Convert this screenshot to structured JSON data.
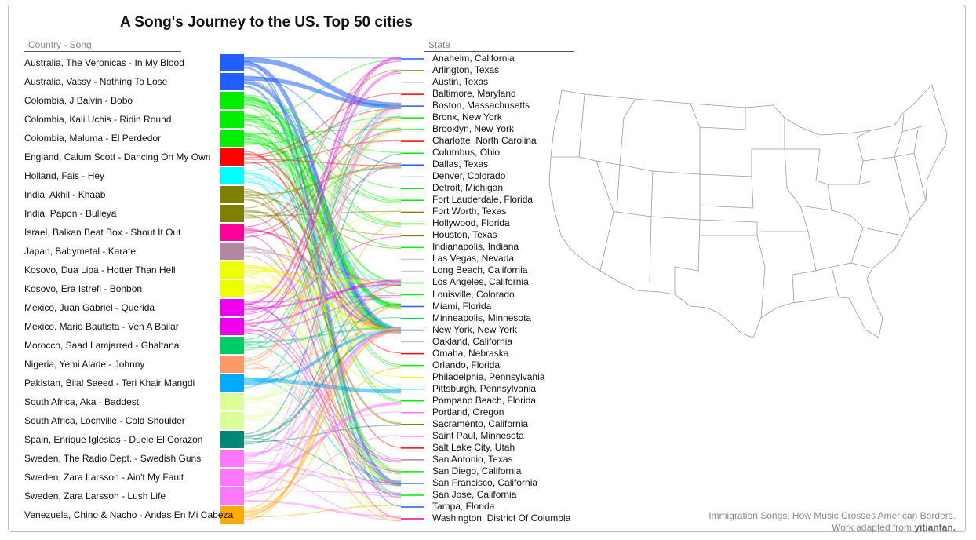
{
  "title": "A Song's Journey to the US. Top 50 cities",
  "left_header": "Country - Song",
  "right_header": "State",
  "credit": {
    "line1": "Immigration Songs: How Music Crosses American Borders.",
    "line2_prefix": "Work adapted from ",
    "line2_author": "yitianfan."
  },
  "songs": [
    {
      "label": "Australia, The Veronicas - In My Blood",
      "color": "#1f5eff"
    },
    {
      "label": "Australia, Vassy - Nothing To Lose",
      "color": "#1f5eff"
    },
    {
      "label": "Colombia, J Balvin - Bobo",
      "color": "#00ee00"
    },
    {
      "label": "Colombia, Kali Uchis - Ridin Round",
      "color": "#00ee00"
    },
    {
      "label": "Colombia, Maluma - El Perdedor",
      "color": "#00ee00"
    },
    {
      "label": "England, Calum Scott - Dancing On My Own",
      "color": "#ff0000"
    },
    {
      "label": "Holland, Fais - Hey",
      "color": "#00ffff"
    },
    {
      "label": "India, Akhil - Khaab",
      "color": "#808000"
    },
    {
      "label": "India, Papon - Bulleya",
      "color": "#808000"
    },
    {
      "label": "Israel, Balkan Beat Box - Shout It Out",
      "color": "#ff0099"
    },
    {
      "label": "Japan, Babymetal - Karate",
      "color": "#b3879f"
    },
    {
      "label": "Kosovo, Dua Lipa - Hotter Than Hell",
      "color": "#eeff00"
    },
    {
      "label": "Kosovo, Era Istrefi - Bonbon",
      "color": "#eeff00"
    },
    {
      "label": "Mexico, Juan Gabriel - Querida",
      "color": "#ee00ee"
    },
    {
      "label": "Mexico, Mario Bautista - Ven A Bailar",
      "color": "#ee00ee"
    },
    {
      "label": "Morocco, Saad Lamjarred - Ghaltana",
      "color": "#00cc66"
    },
    {
      "label": "Nigeria, Yemi Alade - Johnny",
      "color": "#ff9966"
    },
    {
      "label": "Pakistan, Bilal Saeed - Teri Khair Mangdi",
      "color": "#00aaff"
    },
    {
      "label": "South Africa, Aka - Baddest",
      "color": "#ddff99"
    },
    {
      "label": "South Africa, Locnville - Cold Shoulder",
      "color": "#ddff99"
    },
    {
      "label": "Spain, Enrique Iglesias - Duele El Corazon",
      "color": "#008877"
    },
    {
      "label": "Sweden, The Radio Dept. - Swedish Guns",
      "color": "#ff77ff"
    },
    {
      "label": "Sweden, Zara Larsson - Ain't My Fault",
      "color": "#ff77ff"
    },
    {
      "label": "Sweden, Zara Larsson - Lush Life",
      "color": "#ff77ff"
    },
    {
      "label": "Venezuela, Chino & Nacho - Andas En Mi Cabeza",
      "color": "#ffaa00"
    }
  ],
  "cities": [
    "Anaheim, California",
    "Arlington, Texas",
    "Austin, Texas",
    "Baltimore, Maryland",
    "Boston, Massachusetts",
    "Bronx, New York",
    "Brooklyn, New York",
    "Charlotte, North Carolina",
    "Columbus, Ohio",
    "Dallas, Texas",
    "Denver, Colorado",
    "Detroit, Michigan",
    "Fort Lauderdale, Florida",
    "Fort Worth, Texas",
    "Hollywood, Florida",
    "Houston, Texas",
    "Indianapolis, Indiana",
    "Las Vegas, Nevada",
    "Long Beach, California",
    "Los Angeles, California",
    "Louisville, Colorado",
    "Miami, Florida",
    "Minneapolis, Minnesota",
    "New York, New York",
    "Oakland, California",
    "Omaha, Nebraska",
    "Orlando, Florida",
    "Philadelphia, Pennsylvania",
    "Pittsburgh, Pennsylvania",
    "Pompano Beach, Florida",
    "Portland, Oregon",
    "Sacramento, California",
    "Saint Paul, Minnesota",
    "Salt Lake City, Utah",
    "San Antonio, Texas",
    "San Diego, California",
    "San Francisco, California",
    "San Jose, California",
    "Tampa, Florida",
    "Washington, District Of Columbia"
  ],
  "links": [
    [
      0,
      4,
      5
    ],
    [
      0,
      23,
      4
    ],
    [
      0,
      36,
      2
    ],
    [
      0,
      0,
      1
    ],
    [
      0,
      38,
      1
    ],
    [
      1,
      4,
      4
    ],
    [
      1,
      23,
      3
    ],
    [
      1,
      36,
      2
    ],
    [
      1,
      9,
      1
    ],
    [
      1,
      21,
      1
    ],
    [
      2,
      21,
      3
    ],
    [
      2,
      23,
      2
    ],
    [
      2,
      14,
      1
    ],
    [
      2,
      12,
      1
    ],
    [
      2,
      26,
      1
    ],
    [
      2,
      35,
      1
    ],
    [
      2,
      37,
      1
    ],
    [
      2,
      29,
      1
    ],
    [
      2,
      11,
      1
    ],
    [
      2,
      20,
      1
    ],
    [
      3,
      23,
      2
    ],
    [
      3,
      19,
      2
    ],
    [
      3,
      36,
      1
    ],
    [
      3,
      35,
      1
    ],
    [
      3,
      0,
      1
    ],
    [
      3,
      21,
      1
    ],
    [
      3,
      12,
      1
    ],
    [
      3,
      14,
      1
    ],
    [
      3,
      8,
      1
    ],
    [
      4,
      21,
      3
    ],
    [
      4,
      23,
      2
    ],
    [
      4,
      14,
      1
    ],
    [
      4,
      12,
      1
    ],
    [
      4,
      26,
      1
    ],
    [
      4,
      29,
      1
    ],
    [
      4,
      5,
      1
    ],
    [
      4,
      6,
      1
    ],
    [
      4,
      35,
      1
    ],
    [
      4,
      16,
      1
    ],
    [
      5,
      23,
      2
    ],
    [
      5,
      4,
      1
    ],
    [
      5,
      25,
      1
    ],
    [
      5,
      33,
      1
    ],
    [
      5,
      3,
      1
    ],
    [
      5,
      9,
      1
    ],
    [
      5,
      7,
      1
    ],
    [
      6,
      23,
      2
    ],
    [
      6,
      19,
      1
    ],
    [
      6,
      36,
      1
    ],
    [
      6,
      4,
      1
    ],
    [
      6,
      28,
      1
    ],
    [
      6,
      37,
      1
    ],
    [
      6,
      21,
      1
    ],
    [
      7,
      23,
      2
    ],
    [
      7,
      9,
      2
    ],
    [
      7,
      31,
      2
    ],
    [
      7,
      36,
      1
    ],
    [
      7,
      37,
      1
    ],
    [
      7,
      16,
      1
    ],
    [
      8,
      23,
      2
    ],
    [
      8,
      36,
      1
    ],
    [
      8,
      9,
      1
    ],
    [
      8,
      1,
      1
    ],
    [
      8,
      15,
      1
    ],
    [
      8,
      13,
      1
    ],
    [
      9,
      23,
      2
    ],
    [
      9,
      5,
      1
    ],
    [
      9,
      6,
      1
    ],
    [
      9,
      0,
      1
    ],
    [
      9,
      19,
      1
    ],
    [
      9,
      39,
      1
    ],
    [
      10,
      23,
      2
    ],
    [
      10,
      19,
      1
    ],
    [
      10,
      36,
      1
    ],
    [
      10,
      37,
      1
    ],
    [
      10,
      34,
      1
    ],
    [
      11,
      23,
      3
    ],
    [
      11,
      19,
      2
    ],
    [
      11,
      4,
      1
    ],
    [
      11,
      36,
      1
    ],
    [
      11,
      13,
      1
    ],
    [
      11,
      27,
      1
    ],
    [
      11,
      39,
      1
    ],
    [
      12,
      23,
      2
    ],
    [
      12,
      5,
      1
    ],
    [
      12,
      6,
      1
    ],
    [
      12,
      28,
      1
    ],
    [
      12,
      35,
      1
    ],
    [
      12,
      21,
      1
    ],
    [
      13,
      0,
      2
    ],
    [
      13,
      19,
      2
    ],
    [
      13,
      1,
      1
    ],
    [
      13,
      20,
      1
    ],
    [
      13,
      34,
      1
    ],
    [
      13,
      15,
      1
    ],
    [
      13,
      9,
      1
    ],
    [
      13,
      37,
      1
    ],
    [
      14,
      19,
      2
    ],
    [
      14,
      0,
      1
    ],
    [
      14,
      20,
      1
    ],
    [
      14,
      1,
      1
    ],
    [
      14,
      34,
      1
    ],
    [
      14,
      35,
      1
    ],
    [
      14,
      36,
      1
    ],
    [
      15,
      23,
      2
    ],
    [
      15,
      5,
      1
    ],
    [
      15,
      6,
      1
    ],
    [
      15,
      4,
      1
    ],
    [
      15,
      36,
      1
    ],
    [
      15,
      22,
      1
    ],
    [
      16,
      5,
      2
    ],
    [
      16,
      6,
      1
    ],
    [
      16,
      23,
      1
    ],
    [
      16,
      4,
      1
    ],
    [
      16,
      39,
      1
    ],
    [
      16,
      35,
      1
    ],
    [
      17,
      28,
      4
    ],
    [
      17,
      23,
      3
    ],
    [
      17,
      4,
      1
    ],
    [
      17,
      36,
      1
    ],
    [
      17,
      19,
      1
    ],
    [
      18,
      23,
      2
    ],
    [
      18,
      6,
      1
    ],
    [
      18,
      39,
      1
    ],
    [
      18,
      38,
      1
    ],
    [
      18,
      19,
      1
    ],
    [
      18,
      12,
      1
    ],
    [
      19,
      23,
      2
    ],
    [
      19,
      6,
      1
    ],
    [
      19,
      39,
      1
    ],
    [
      19,
      38,
      1
    ],
    [
      19,
      35,
      1
    ],
    [
      20,
      23,
      2
    ],
    [
      20,
      19,
      1
    ],
    [
      20,
      21,
      1
    ],
    [
      20,
      8,
      1
    ],
    [
      20,
      36,
      1
    ],
    [
      20,
      31,
      1
    ],
    [
      21,
      23,
      2
    ],
    [
      21,
      4,
      1
    ],
    [
      21,
      36,
      1
    ],
    [
      21,
      30,
      1
    ],
    [
      21,
      19,
      1
    ],
    [
      21,
      37,
      1
    ],
    [
      22,
      29,
      3
    ],
    [
      22,
      23,
      2
    ],
    [
      22,
      4,
      1
    ],
    [
      22,
      36,
      1
    ],
    [
      22,
      39,
      1
    ],
    [
      22,
      19,
      1
    ],
    [
      23,
      23,
      2
    ],
    [
      23,
      4,
      1
    ],
    [
      23,
      39,
      2
    ],
    [
      23,
      37,
      1
    ],
    [
      23,
      32,
      1
    ],
    [
      24,
      23,
      2
    ],
    [
      24,
      21,
      2
    ],
    [
      24,
      19,
      1
    ],
    [
      24,
      14,
      1
    ],
    [
      24,
      26,
      1
    ],
    [
      24,
      38,
      1
    ]
  ]
}
